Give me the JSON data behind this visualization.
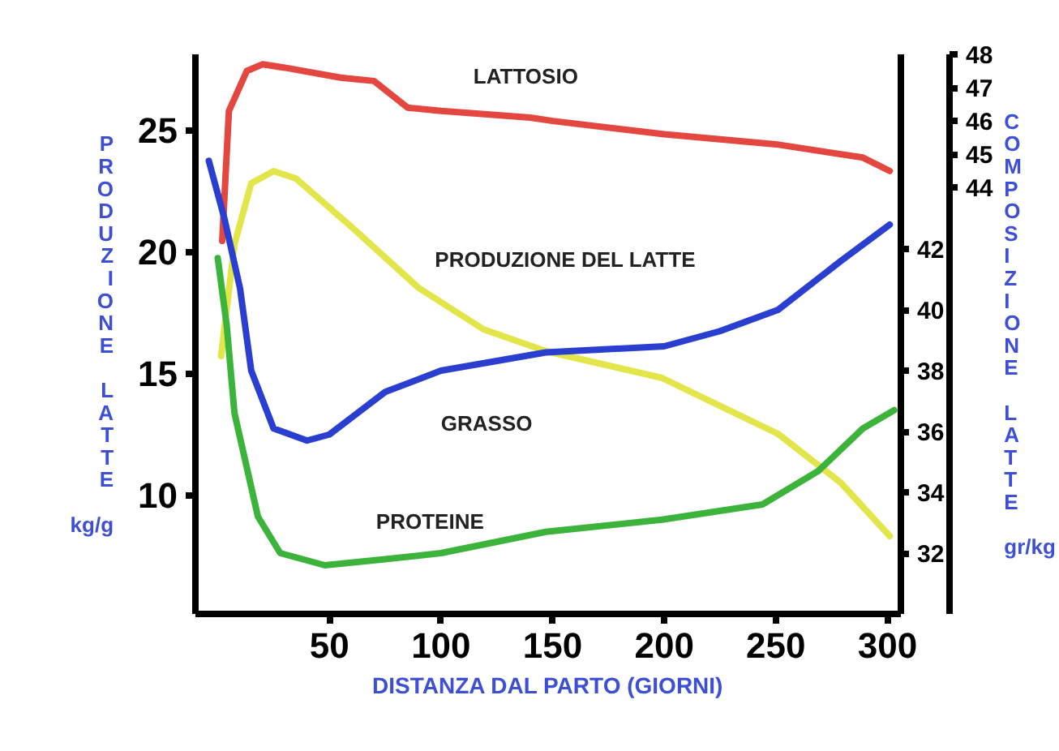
{
  "chart_data": {
    "type": "line",
    "xlabel": "DISTANZA DAL PARTO (GIORNI)",
    "ylabel": "PRODUZIONE LATTE",
    "y2label": "COMPOSIZIONE LATTE",
    "annotations": [
      "kg/g",
      "gr/kg"
    ],
    "xlim": [
      -10,
      306
    ],
    "xticks": [
      50,
      100,
      150,
      200,
      250,
      300
    ],
    "ylim": [
      5.1,
      28.1
    ],
    "yticks": [
      10,
      15,
      20,
      25
    ],
    "y2lim": [
      30,
      48.4
    ],
    "y2ticks": [
      32,
      34,
      36,
      38,
      40,
      42
    ],
    "y3lim": [
      31.2,
      48
    ],
    "y3ticks": [
      44,
      45,
      46,
      47,
      48
    ],
    "grid": false,
    "line_style": "solid",
    "series": [
      {
        "name": "LATTOSIO",
        "color": "#e4473f",
        "axis": "y3",
        "x": [
          2,
          5,
          13,
          20,
          30,
          55,
          70,
          85,
          100,
          140,
          150,
          200,
          250,
          289,
          301
        ],
        "values": [
          42.4,
          46.3,
          47.5,
          47.7,
          47.6,
          47.3,
          47.2,
          46.4,
          46.3,
          46.1,
          46.0,
          45.6,
          45.3,
          44.9,
          44.5
        ]
      },
      {
        "name": "PRODUZIONE DEL LATTE",
        "color": "#e2e64a",
        "x": [
          1.5,
          7.5,
          15,
          25,
          35,
          60,
          90,
          119,
          147,
          199,
          251,
          279,
          301
        ],
        "values": [
          15.7,
          20.3,
          22.8,
          23.3,
          23.0,
          21.0,
          18.5,
          16.8,
          15.9,
          14.8,
          12.5,
          10.5,
          8.3
        ]
      },
      {
        "name": "GRASSO",
        "color": "#2a3fd0",
        "axis": "y2",
        "x": [
          -4,
          3,
          10,
          15,
          25,
          40,
          50,
          75,
          100,
          147,
          200,
          225,
          251,
          279,
          301
        ],
        "values": [
          44.9,
          43.0,
          40.7,
          38.0,
          36.1,
          35.7,
          35.9,
          37.3,
          38.0,
          38.6,
          38.8,
          39.3,
          40.0,
          41.6,
          42.8
        ]
      },
      {
        "name": "PROTEINE",
        "color": "#3cb43c",
        "axis": "y2",
        "x": [
          0,
          4,
          7.5,
          18,
          28,
          48,
          75,
          100,
          147,
          199,
          244,
          269,
          289,
          303
        ],
        "values": [
          41.7,
          39.5,
          36.6,
          33.2,
          32.0,
          31.6,
          31.8,
          32.0,
          32.7,
          33.1,
          33.6,
          34.7,
          36.1,
          36.7
        ]
      }
    ]
  }
}
